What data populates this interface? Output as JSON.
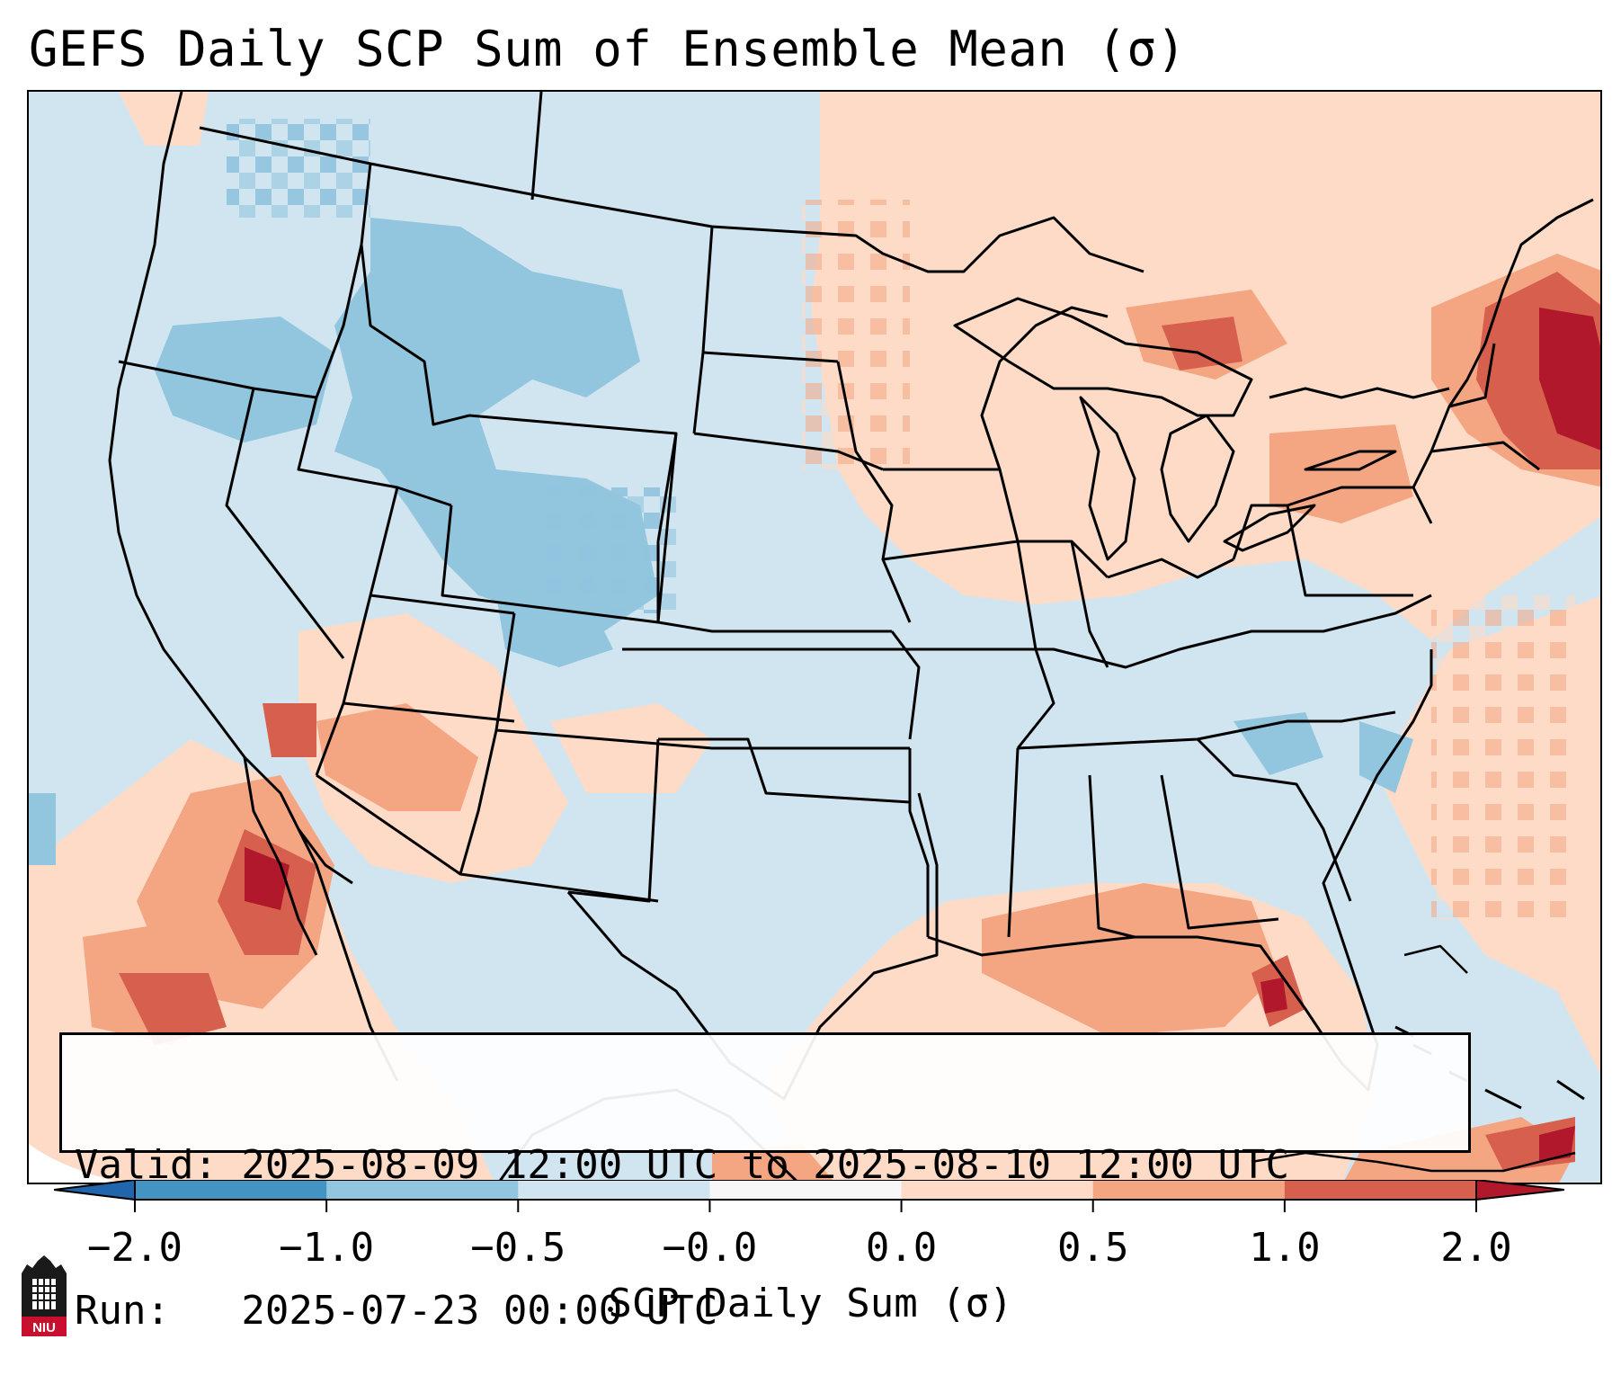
{
  "header": {
    "title": "GEFS Daily SCP Sum of Ensemble Mean (σ)"
  },
  "info": {
    "valid_line": "Valid: 2025-08-09 12:00 UTC to 2025-08-10 12:00 UTC",
    "run_line": "Run:   2025-07-23 00:00 UTC"
  },
  "colorbar": {
    "label": "SCP Daily Sum (σ)",
    "ticks": [
      "−2.0",
      "−1.0",
      "−0.5",
      "−0.0",
      "0.0",
      "0.5",
      "1.0",
      "2.0"
    ],
    "colors": [
      "#4393c3",
      "#92c5de",
      "#d1e5f0",
      "#f7f7f7",
      "#fddbc7",
      "#f4a582",
      "#d6604d"
    ],
    "extend_low_color": "#2166ac",
    "extend_high_color": "#b2182b"
  },
  "map": {
    "projection": "Lambert Conformal",
    "region": "CONUS",
    "background_color": "#d1e5f0",
    "anomaly_regions": [
      {
        "region": "Northern Rockies / Idaho / Montana",
        "level": -0.5
      },
      {
        "region": "Wyoming / Colorado",
        "level": -0.5
      },
      {
        "region": "Northeast / New England",
        "level": 1.5
      },
      {
        "region": "Great Lakes",
        "level": 1.0
      },
      {
        "region": "Southwest / Arizona",
        "level": 1.0
      },
      {
        "region": "Baja California / Mexico Pacific",
        "level": 1.5
      },
      {
        "region": "Gulf of Mexico / Florida",
        "level": 1.0
      },
      {
        "region": "Upper Midwest",
        "level": 0.25
      }
    ]
  },
  "logo": {
    "text": "NIU"
  }
}
